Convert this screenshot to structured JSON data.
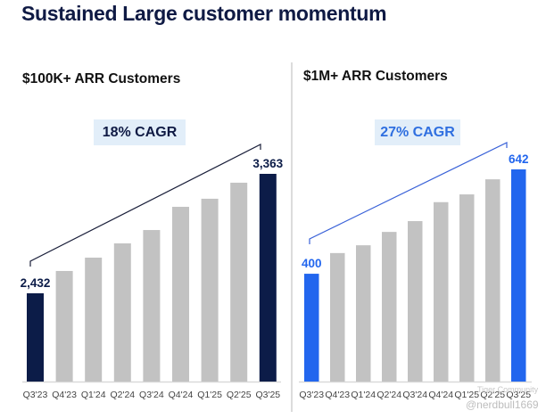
{
  "title": "Sustained Large customer momentum",
  "watermark": {
    "brand": "Tiger Community",
    "handle": "@nerdbull1669"
  },
  "colors": {
    "navy": "#0c1c48",
    "blue": "#2266ee",
    "gray": "#c2c2c2",
    "cagr_bg": "#e2eef9"
  },
  "chart_data": [
    {
      "type": "bar",
      "title": "$100K+ ARR Customers",
      "annotation": "18% CAGR",
      "categories": [
        "Q3'23",
        "Q4'23",
        "Q1'24",
        "Q2'24",
        "Q3'24",
        "Q4'24",
        "Q1'25",
        "Q2'25",
        "Q3'25"
      ],
      "values": [
        2432,
        2606,
        2710,
        2821,
        2925,
        3106,
        3169,
        3294,
        3363
      ],
      "data_labels": {
        "0": "2,432",
        "8": "3,363"
      },
      "highlight_color": "#0c1c48",
      "ylim": [
        1744,
        3363
      ],
      "grid": false,
      "xlabel": "",
      "ylabel": ""
    },
    {
      "type": "bar",
      "title": "$1M+ ARR Customers",
      "annotation": "27% CAGR",
      "categories": [
        "Q3'23",
        "Q4'23",
        "Q1'24",
        "Q2'24",
        "Q3'24",
        "Q4'24",
        "Q1'25",
        "Q2'25",
        "Q3'25"
      ],
      "values": [
        400,
        448,
        466,
        497,
        522,
        566,
        584,
        619,
        642
      ],
      "data_labels": {
        "0": "400",
        "8": "642"
      },
      "highlight_color": "#2266ee",
      "ylim": [
        150,
        642
      ],
      "grid": false,
      "xlabel": "",
      "ylabel": ""
    }
  ]
}
